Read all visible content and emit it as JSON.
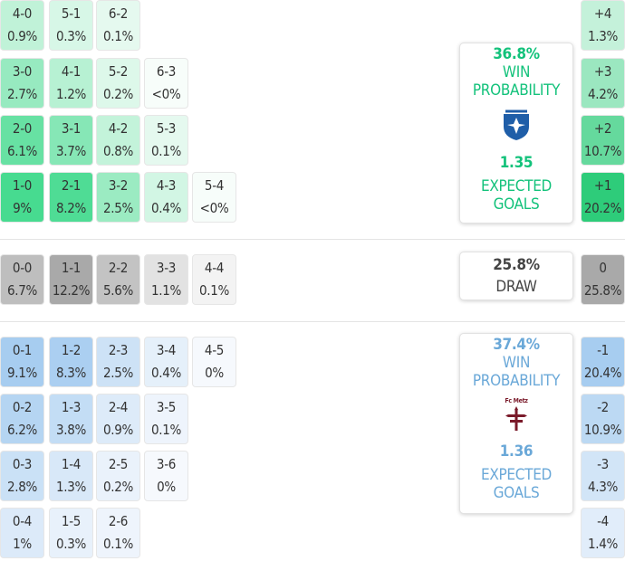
{
  "home": {
    "win_pct": "36.8%",
    "win_label_1": "WIN",
    "win_label_2": "PROBABILITY",
    "xg": "1.35",
    "xg_label_1": "EXPECTED",
    "xg_label_2": "GOALS",
    "accent": "#13c27b",
    "scores": [
      {
        "score": "4-0",
        "prob": "0.9%",
        "p": 0.9
      },
      {
        "score": "5-1",
        "prob": "0.3%",
        "p": 0.3
      },
      {
        "score": "6-2",
        "prob": "0.1%",
        "p": 0.1
      },
      {
        "score": "3-0",
        "prob": "2.7%",
        "p": 2.7
      },
      {
        "score": "4-1",
        "prob": "1.2%",
        "p": 1.2
      },
      {
        "score": "5-2",
        "prob": "0.2%",
        "p": 0.2
      },
      {
        "score": "6-3",
        "prob": "<0%",
        "p": 0
      },
      {
        "score": "2-0",
        "prob": "6.1%",
        "p": 6.1
      },
      {
        "score": "3-1",
        "prob": "3.7%",
        "p": 3.7
      },
      {
        "score": "4-2",
        "prob": "0.8%",
        "p": 0.8
      },
      {
        "score": "5-3",
        "prob": "0.1%",
        "p": 0.1
      },
      {
        "score": "1-0",
        "prob": "9%",
        "p": 9
      },
      {
        "score": "2-1",
        "prob": "8.2%",
        "p": 8.2
      },
      {
        "score": "3-2",
        "prob": "2.5%",
        "p": 2.5
      },
      {
        "score": "4-3",
        "prob": "0.4%",
        "p": 0.4
      },
      {
        "score": "5-4",
        "prob": "<0%",
        "p": 0
      }
    ],
    "margins": [
      {
        "margin": "+4",
        "prob": "1.3%",
        "p": 1.3
      },
      {
        "margin": "+3",
        "prob": "4.2%",
        "p": 4.2
      },
      {
        "margin": "+2",
        "prob": "10.7%",
        "p": 10.7
      },
      {
        "margin": "+1",
        "prob": "20.2%",
        "p": 20.2
      }
    ]
  },
  "draw": {
    "pct": "25.8%",
    "label": "DRAW",
    "scores": [
      {
        "score": "0-0",
        "prob": "6.7%",
        "p": 6.7
      },
      {
        "score": "1-1",
        "prob": "12.2%",
        "p": 12.2
      },
      {
        "score": "2-2",
        "prob": "5.6%",
        "p": 5.6
      },
      {
        "score": "3-3",
        "prob": "1.1%",
        "p": 1.1
      },
      {
        "score": "4-4",
        "prob": "0.1%",
        "p": 0.1
      }
    ],
    "margin": {
      "margin": "0",
      "prob": "25.8%",
      "p": 25.8
    }
  },
  "away": {
    "win_pct": "37.4%",
    "win_label_1": "WIN",
    "win_label_2": "PROBABILITY",
    "logo_text": "Fc Metz",
    "xg": "1.36",
    "xg_label_1": "EXPECTED",
    "xg_label_2": "GOALS",
    "accent": "#6aa8d8",
    "scores": [
      {
        "score": "0-1",
        "prob": "9.1%",
        "p": 9.1
      },
      {
        "score": "1-2",
        "prob": "8.3%",
        "p": 8.3
      },
      {
        "score": "2-3",
        "prob": "2.5%",
        "p": 2.5
      },
      {
        "score": "3-4",
        "prob": "0.4%",
        "p": 0.4
      },
      {
        "score": "4-5",
        "prob": "0%",
        "p": 0
      },
      {
        "score": "0-2",
        "prob": "6.2%",
        "p": 6.2
      },
      {
        "score": "1-3",
        "prob": "3.8%",
        "p": 3.8
      },
      {
        "score": "2-4",
        "prob": "0.9%",
        "p": 0.9
      },
      {
        "score": "3-5",
        "prob": "0.1%",
        "p": 0.1
      },
      {
        "score": "0-3",
        "prob": "2.8%",
        "p": 2.8
      },
      {
        "score": "1-4",
        "prob": "1.3%",
        "p": 1.3
      },
      {
        "score": "2-5",
        "prob": "0.2%",
        "p": 0.2
      },
      {
        "score": "3-6",
        "prob": "0%",
        "p": 0
      },
      {
        "score": "0-4",
        "prob": "1%",
        "p": 1
      },
      {
        "score": "1-5",
        "prob": "0.3%",
        "p": 0.3
      },
      {
        "score": "2-6",
        "prob": "0.1%",
        "p": 0.1
      }
    ],
    "margins": [
      {
        "margin": "-1",
        "prob": "20.4%",
        "p": 20.4
      },
      {
        "margin": "-2",
        "prob": "10.9%",
        "p": 10.9
      },
      {
        "margin": "-3",
        "prob": "4.3%",
        "p": 4.3
      },
      {
        "margin": "-4",
        "prob": "1.4%",
        "p": 1.4
      }
    ]
  }
}
